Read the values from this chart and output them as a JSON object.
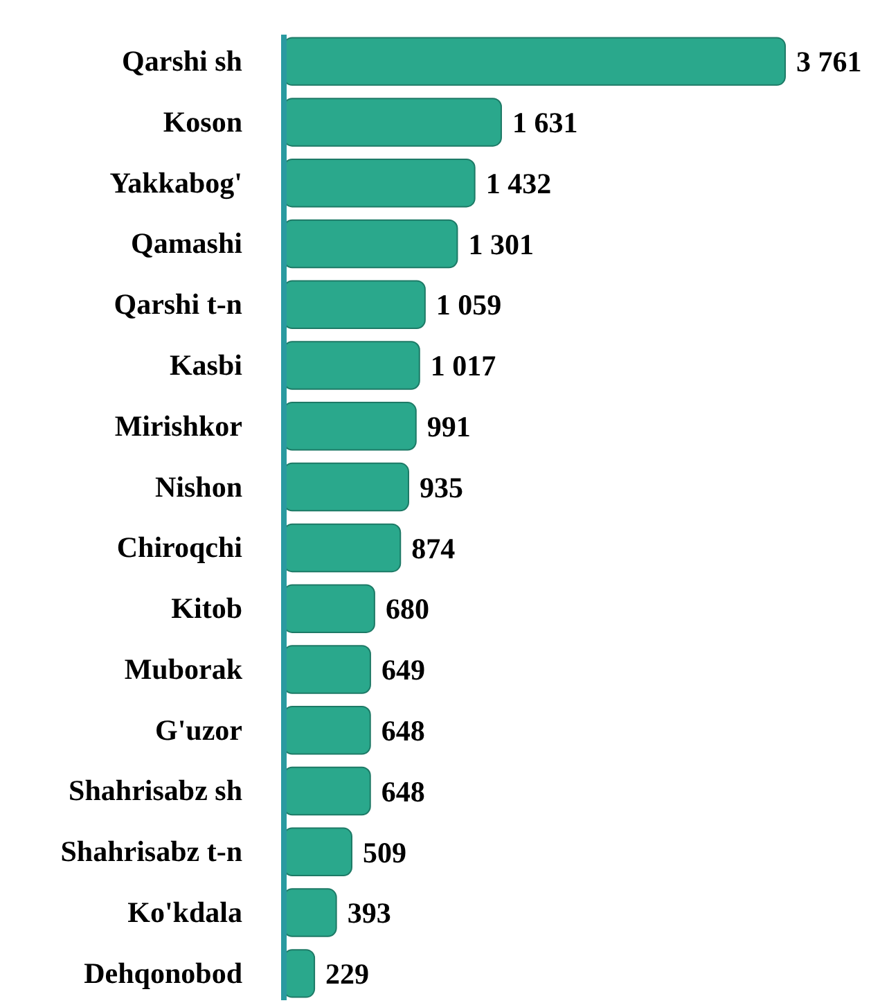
{
  "chart_data": {
    "type": "bar",
    "orientation": "horizontal",
    "categories": [
      "Qarshi sh",
      "Koson",
      "Yakkabog'",
      "Qamashi",
      "Qarshi t-n",
      "Kasbi",
      "Mirishkor",
      "Nishon",
      "Chiroqchi",
      "Kitob",
      "Muborak",
      "G'uzor",
      "Shahrisabz sh",
      "Shahrisabz t-n",
      "Ko'kdala",
      "Dehqonobod"
    ],
    "values": [
      3761,
      1631,
      1432,
      1301,
      1059,
      1017,
      991,
      935,
      874,
      680,
      649,
      648,
      648,
      509,
      393,
      229
    ],
    "value_labels": [
      "3 761",
      "1 631",
      "1 432",
      "1 301",
      "1 059",
      "1 017",
      "991",
      "935",
      "874",
      "680",
      "649",
      "648",
      "648",
      "509",
      "393",
      "229"
    ],
    "color": "#2aa88c"
  }
}
